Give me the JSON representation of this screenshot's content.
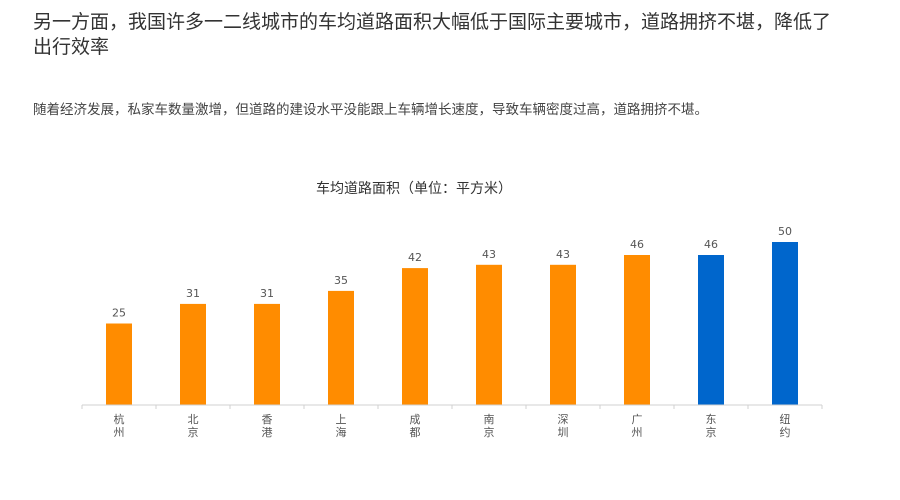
{
  "header": {
    "title": "另一方面，我国许多一二线城市的车均道路面积大幅低于国际主要城市，道路拥挤不堪，降低了出行效率",
    "subtitle": "随着经济发展，私家车数量激增，但道路的建设水平没能跟上车辆增长速度，导致车辆密度过高，道路拥挤不堪。"
  },
  "chart_data": {
    "type": "bar",
    "title": "车均道路面积（单位：平方米）",
    "xlabel": "",
    "ylabel": "",
    "categories": [
      "杭州",
      "北京",
      "香港",
      "上海",
      "成都",
      "南京",
      "深圳",
      "广州",
      "东京",
      "纽约"
    ],
    "values": [
      25,
      31,
      31,
      35,
      42,
      43,
      43,
      46,
      46,
      50
    ],
    "domestic_color": "#FF8C00",
    "international_color": "#0066CC",
    "bar_colors": [
      "#FF8C00",
      "#FF8C00",
      "#FF8C00",
      "#FF8C00",
      "#FF8C00",
      "#FF8C00",
      "#FF8C00",
      "#FF8C00",
      "#0066CC",
      "#0066CC"
    ],
    "ylim": [
      0,
      50
    ],
    "grid": false,
    "legend": "none"
  }
}
